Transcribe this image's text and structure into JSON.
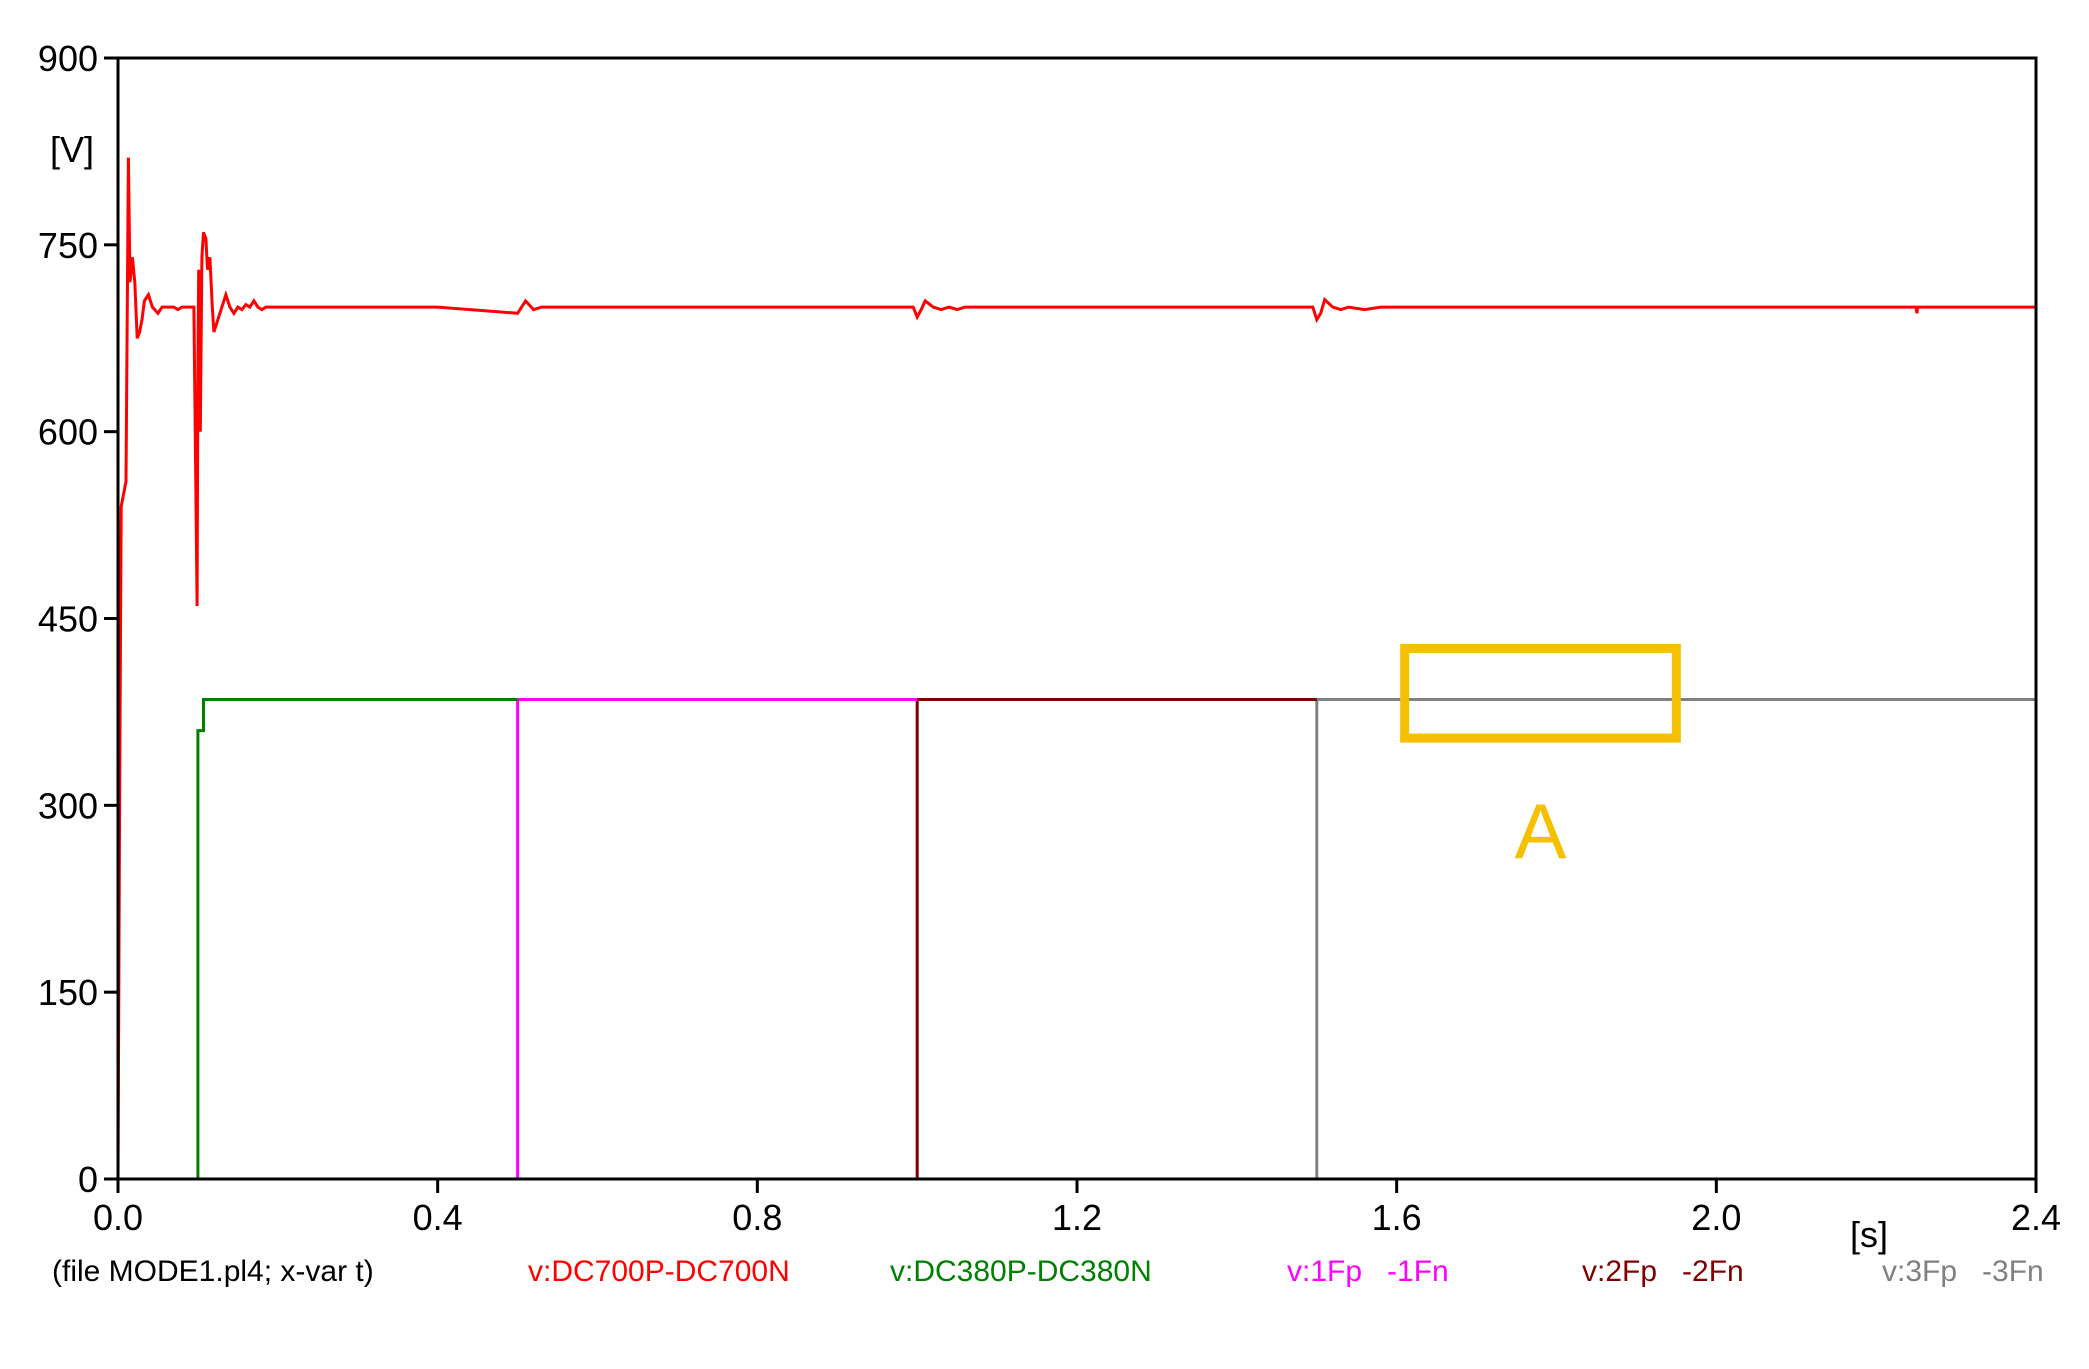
{
  "chart_data": {
    "type": "line",
    "ylabel": "[V]",
    "xlabel": "[s]",
    "xlim": [
      0,
      2.4
    ],
    "ylim": [
      0,
      900
    ],
    "xticks": [
      0,
      0.4,
      0.8,
      1.2,
      1.6,
      2.0,
      2.4
    ],
    "xtick_labels": [
      "0.0",
      "0.4",
      "0.8",
      "1.2",
      "1.6",
      "2.0",
      "2.4"
    ],
    "yticks": [
      0,
      150,
      300,
      450,
      600,
      750,
      900
    ],
    "ytick_labels": [
      "0",
      "150",
      "300",
      "450",
      "600",
      "750",
      "900"
    ],
    "grid": false,
    "file_info": "(file MODE1.pl4; x-var t)",
    "series": [
      {
        "name": "v:DC700P-DC700N",
        "color": "#ff0000",
        "x": [
          0,
          0.002,
          0.004,
          0.007,
          0.01,
          0.013,
          0.015,
          0.018,
          0.021,
          0.024,
          0.027,
          0.03,
          0.033,
          0.038,
          0.043,
          0.05,
          0.055,
          0.06,
          0.07,
          0.075,
          0.08,
          0.085,
          0.09,
          0.095,
          0.099,
          0.1,
          0.101,
          0.102,
          0.103,
          0.105,
          0.107,
          0.11,
          0.112,
          0.115,
          0.118,
          0.12,
          0.125,
          0.13,
          0.135,
          0.14,
          0.145,
          0.15,
          0.155,
          0.16,
          0.165,
          0.17,
          0.175,
          0.18,
          0.185,
          0.19,
          0.2,
          0.25,
          0.3,
          0.4,
          0.5,
          0.505,
          0.51,
          0.52,
          0.53,
          0.54,
          0.9,
          0.995,
          1.0,
          1.005,
          1.01,
          1.02,
          1.03,
          1.04,
          1.05,
          1.06,
          1.49,
          1.495,
          1.5,
          1.505,
          1.51,
          1.52,
          1.53,
          1.54,
          1.56,
          1.58,
          2.25,
          2.251,
          2.252,
          2.4
        ],
        "y": [
          0,
          300,
          540,
          550,
          560,
          820,
          720,
          740,
          720,
          675,
          680,
          690,
          705,
          710,
          700,
          695,
          700,
          700,
          700,
          698,
          700,
          700,
          700,
          700,
          460,
          650,
          730,
          690,
          600,
          740,
          760,
          755,
          730,
          740,
          700,
          680,
          690,
          700,
          710,
          700,
          695,
          700,
          698,
          702,
          700,
          705,
          700,
          698,
          700,
          700,
          700,
          700,
          700,
          700,
          695,
          700,
          705,
          698,
          700,
          700,
          700,
          700,
          692,
          698,
          705,
          700,
          698,
          700,
          698,
          700,
          700,
          700,
          690,
          695,
          706,
          700,
          698,
          700,
          698,
          700,
          700,
          695,
          700,
          700
        ]
      },
      {
        "name": "v:DC380P-DC380N",
        "color": "#008000",
        "x": [
          0,
          0.1,
          0.1,
          0.107,
          0.107,
          0.5
        ],
        "y": [
          0,
          0,
          360,
          360,
          385,
          385
        ]
      },
      {
        "name": "v:1Fp   -1Fn",
        "color": "#ff00ff",
        "x": [
          0,
          0.5,
          0.5,
          1.0
        ],
        "y": [
          0,
          0,
          385,
          385
        ]
      },
      {
        "name": "v:2Fp   -2Fn",
        "color": "#800000",
        "x": [
          0,
          1.0,
          1.0,
          1.5
        ],
        "y": [
          0,
          0,
          385,
          385
        ]
      },
      {
        "name": "v:3Fp   -3Fn",
        "color": "#808080",
        "x": [
          0,
          1.5,
          1.5,
          2.4
        ],
        "y": [
          0,
          0,
          385,
          385
        ]
      }
    ],
    "annotations": [
      {
        "type": "box",
        "label": "A",
        "color": "#f5c000",
        "x_range": [
          1.61,
          1.95
        ],
        "y_range": [
          354,
          426
        ]
      }
    ]
  }
}
